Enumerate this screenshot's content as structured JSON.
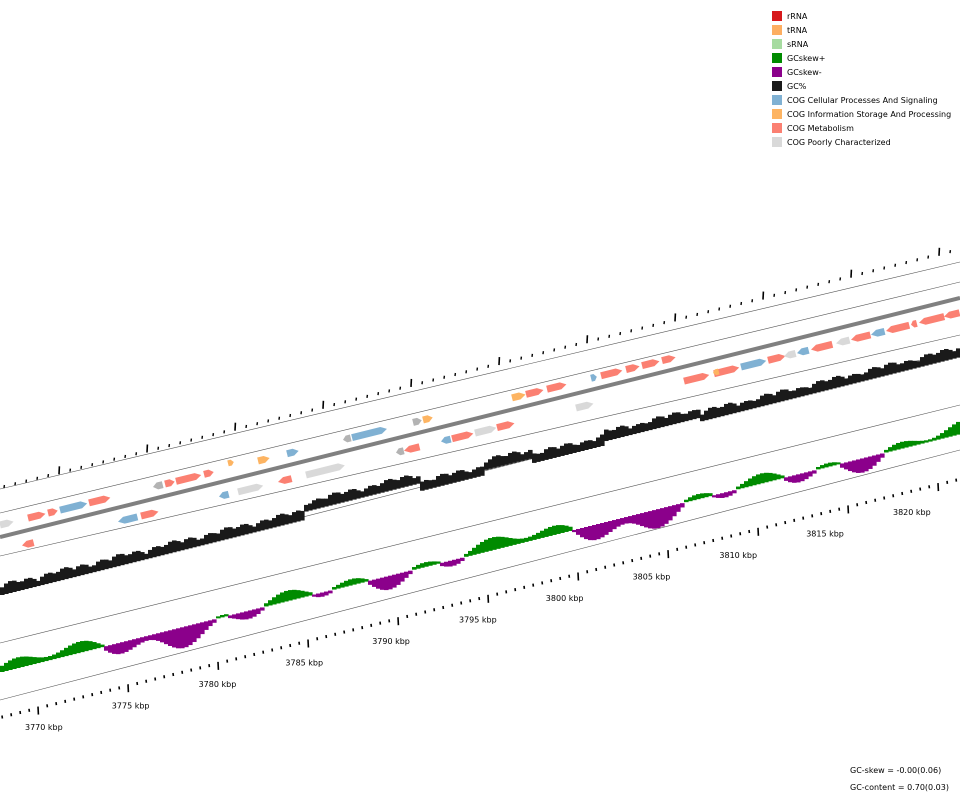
{
  "legend": {
    "items": [
      {
        "label": "rRNA",
        "color": "#d7191c",
        "icon": "rrna-swatch"
      },
      {
        "label": "tRNA",
        "color": "#fdae61",
        "icon": "trna-swatch"
      },
      {
        "label": "sRNA",
        "color": "#a6dba0",
        "icon": "srna-swatch"
      },
      {
        "label": "GCskew+",
        "color": "#008b00",
        "icon": "gcskew-plus-swatch"
      },
      {
        "label": "GCskew-",
        "color": "#8b008b",
        "icon": "gcskew-minus-swatch"
      },
      {
        "label": "GC%",
        "color": "#1a1a1a",
        "icon": "gc-percent-swatch"
      },
      {
        "label": "COG Cellular Processes And Signaling",
        "color": "#80b1d3",
        "icon": "cog-cellular-swatch"
      },
      {
        "label": "COG Information Storage And Processing",
        "color": "#fdb462",
        "icon": "cog-information-swatch"
      },
      {
        "label": "COG Metabolism",
        "color": "#fb8072",
        "icon": "cog-metabolism-swatch"
      },
      {
        "label": "COG Poorly Characterized",
        "color": "#d9d9d9",
        "icon": "cog-poorly-swatch"
      }
    ]
  },
  "stats": {
    "gc_skew": "GC-skew = -0.00(0.06)",
    "gc_content": "GC-content = 0.70(0.03)"
  },
  "axis": {
    "ticks": [
      "3770 kbp",
      "3775 kbp",
      "3780 kbp",
      "3785 kbp",
      "3790 kbp",
      "3795 kbp",
      "3800 kbp",
      "3805 kbp",
      "3810 kbp",
      "3815 kbp",
      "3820 kbp"
    ]
  },
  "colors": {
    "backbone": "#808080",
    "cds_grey": "#b3b3b3"
  }
}
